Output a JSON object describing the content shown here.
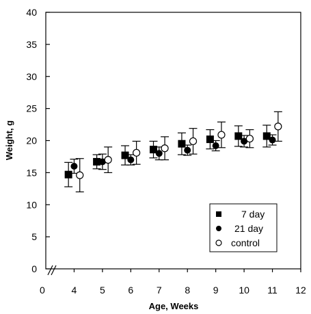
{
  "chart_data": {
    "type": "scatter",
    "title": "",
    "xlabel": "Age, Weeks",
    "ylabel": "Weight, g",
    "xlim": [
      3,
      12
    ],
    "ylim": [
      0,
      40
    ],
    "x_ticks": [
      4,
      5,
      6,
      7,
      8,
      9,
      10,
      11,
      12
    ],
    "x_origin_label": "0",
    "y_ticks": [
      0,
      5,
      10,
      15,
      20,
      25,
      30,
      35,
      40
    ],
    "axis_break": true,
    "grid": false,
    "legend_position": "bottom-right",
    "error_bars": true,
    "series": [
      {
        "name": "7 day",
        "marker": "filled-square",
        "x": [
          3.8,
          4.8,
          5.8,
          6.8,
          7.8,
          8.8,
          9.8,
          10.8
        ],
        "y": [
          14.7,
          16.7,
          17.7,
          18.6,
          19.5,
          20.2,
          20.7,
          20.7
        ],
        "err": [
          1.9,
          1.1,
          1.5,
          1.3,
          1.7,
          1.5,
          1.6,
          1.7
        ]
      },
      {
        "name": "21 day",
        "marker": "filled-circle",
        "x": [
          4.0,
          5.0,
          6.0,
          7.0,
          8.0,
          9.0,
          10.0,
          11.0
        ],
        "y": [
          16.0,
          16.7,
          17.0,
          18.0,
          18.5,
          19.2,
          19.9,
          20.1
        ],
        "err": [
          1.1,
          1.2,
          0.8,
          1.0,
          0.8,
          0.8,
          0.9,
          0.8
        ]
      },
      {
        "name": "control",
        "marker": "open-circle",
        "x": [
          4.2,
          5.2,
          6.2,
          7.2,
          8.2,
          9.2,
          10.2,
          11.2
        ],
        "y": [
          14.6,
          17.0,
          18.1,
          18.8,
          19.9,
          20.9,
          20.3,
          22.2
        ],
        "err": [
          2.6,
          2.0,
          1.8,
          1.8,
          2.0,
          2.0,
          1.4,
          2.3
        ]
      }
    ]
  }
}
